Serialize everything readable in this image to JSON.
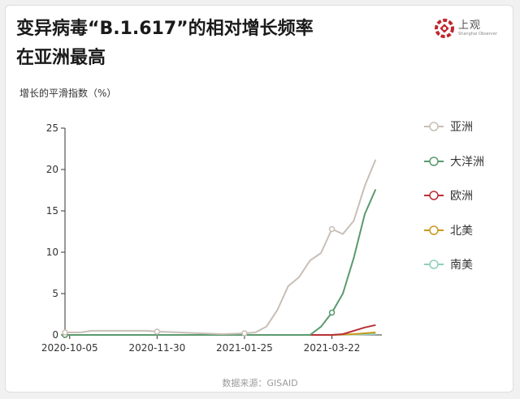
{
  "header": {
    "title_line1": "变异病毒“B.1.617”的相对增长频率",
    "title_line2": "在亚洲最高"
  },
  "logo": {
    "name": "上观",
    "subtitle": "Shanghai Observer"
  },
  "source": "数据来源：GISAID",
  "chart_data": {
    "type": "line",
    "ylabel": "增长的平滑指数（%）",
    "ylim": [
      0,
      25
    ],
    "y_ticks": [
      0,
      5,
      10,
      15,
      20,
      25
    ],
    "x_tick_labels": [
      "2020-10-05",
      "2020-11-30",
      "2021-01-25",
      "2021-03-22"
    ],
    "x_tick_positions": [
      0,
      56,
      112,
      168
    ],
    "x_range": [
      -3,
      200
    ],
    "grid": false,
    "legend_position": "right",
    "series": [
      {
        "name": "亚洲",
        "color": "#c8bfb6",
        "points": [
          [
            -3,
            0.3
          ],
          [
            7,
            0.3
          ],
          [
            14,
            0.5
          ],
          [
            28,
            0.5
          ],
          [
            42,
            0.5
          ],
          [
            49,
            0.5
          ],
          [
            56,
            0.4
          ],
          [
            70,
            0.3
          ],
          [
            84,
            0.2
          ],
          [
            98,
            0.1
          ],
          [
            112,
            0.2
          ],
          [
            119,
            0.3
          ],
          [
            126,
            1.0
          ],
          [
            133,
            3.0
          ],
          [
            140,
            5.9
          ],
          [
            147,
            7.0
          ],
          [
            154,
            9.0
          ],
          [
            161,
            9.9
          ],
          [
            168,
            12.8
          ],
          [
            175,
            12.2
          ],
          [
            182,
            13.8
          ],
          [
            189,
            18.0
          ],
          [
            196,
            21.2
          ]
        ],
        "markers": [
          [
            -3,
            0.3
          ],
          [
            56,
            0.4
          ],
          [
            112,
            0.2
          ],
          [
            168,
            12.8
          ]
        ]
      },
      {
        "name": "大洋洲",
        "color": "#5a9a6e",
        "points": [
          [
            -3,
            0
          ],
          [
            112,
            0
          ],
          [
            126,
            0
          ],
          [
            140,
            0
          ],
          [
            154,
            0
          ],
          [
            161,
            1.0
          ],
          [
            168,
            2.7
          ],
          [
            175,
            5.0
          ],
          [
            182,
            9.3
          ],
          [
            189,
            14.6
          ],
          [
            196,
            17.6
          ]
        ],
        "markers": [
          [
            -3,
            0
          ],
          [
            168,
            2.7
          ]
        ]
      },
      {
        "name": "欧洲",
        "color": "#b83035",
        "points": [
          [
            -3,
            0
          ],
          [
            112,
            0
          ],
          [
            168,
            0
          ],
          [
            175,
            0.1
          ],
          [
            182,
            0.5
          ],
          [
            189,
            0.9
          ],
          [
            196,
            1.2
          ]
        ],
        "markers": [
          [
            -3,
            0
          ]
        ]
      },
      {
        "name": "北美",
        "color": "#c99a1c",
        "points": [
          [
            -3,
            0
          ],
          [
            112,
            0
          ],
          [
            168,
            0
          ],
          [
            182,
            0.1
          ],
          [
            196,
            0.3
          ]
        ],
        "markers": [
          [
            -3,
            0
          ]
        ]
      },
      {
        "name": "南美",
        "color": "#8fcfbe",
        "points": [
          [
            -3,
            0
          ],
          [
            112,
            0
          ],
          [
            168,
            0
          ],
          [
            182,
            0.05
          ],
          [
            196,
            0.1
          ]
        ],
        "markers": [
          [
            -3,
            0
          ]
        ]
      }
    ]
  }
}
